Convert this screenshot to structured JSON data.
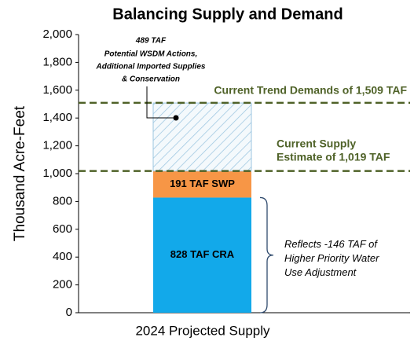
{
  "chart_data": {
    "type": "bar",
    "title": "Balancing Supply and Demand",
    "ylabel": "Thousand Acre-Feet",
    "categories": [
      "2024 Projected Supply"
    ],
    "stacked": true,
    "series": [
      {
        "values": [
          828
        ],
        "value_labels": [
          "828 TAF CRA"
        ],
        "color": "#12a9ea"
      },
      {
        "values": [
          191
        ],
        "value_labels": [
          "191 TAF SWP"
        ],
        "color": "#f79646"
      },
      {
        "values": [
          489
        ],
        "value_labels": [
          "489 TAF"
        ],
        "color": "#9cc6e0",
        "hatch": true
      }
    ],
    "ylim": [
      0,
      2000
    ],
    "yticks": [
      0,
      200,
      400,
      600,
      800,
      {
        "value": 1000,
        "label": "1,000"
      },
      {
        "value": 1200,
        "label": "1,200"
      },
      {
        "value": 1400,
        "label": "1,400"
      },
      {
        "value": 1600,
        "label": "1,600"
      },
      {
        "value": 1800,
        "label": "1,800"
      },
      {
        "value": 2000,
        "label": "2,000"
      }
    ],
    "reference_lines": [
      {
        "value": 1509,
        "label": [
          "Current Trend Demands of 1,509 TAF"
        ],
        "color": "#4f6228"
      },
      {
        "value": 1019,
        "label": [
          "Current Supply",
          "Estimate of 1,019 TAF"
        ],
        "color": "#4f6228"
      }
    ],
    "annotations": [
      {
        "text": [
          "Potential WSDM Actions,",
          "Additional Imported Supplies",
          "& Conservation"
        ]
      },
      {
        "text": [
          "Reflects -146 TAF of",
          "Higher Priority Water",
          "Use Adjustment"
        ]
      }
    ]
  }
}
